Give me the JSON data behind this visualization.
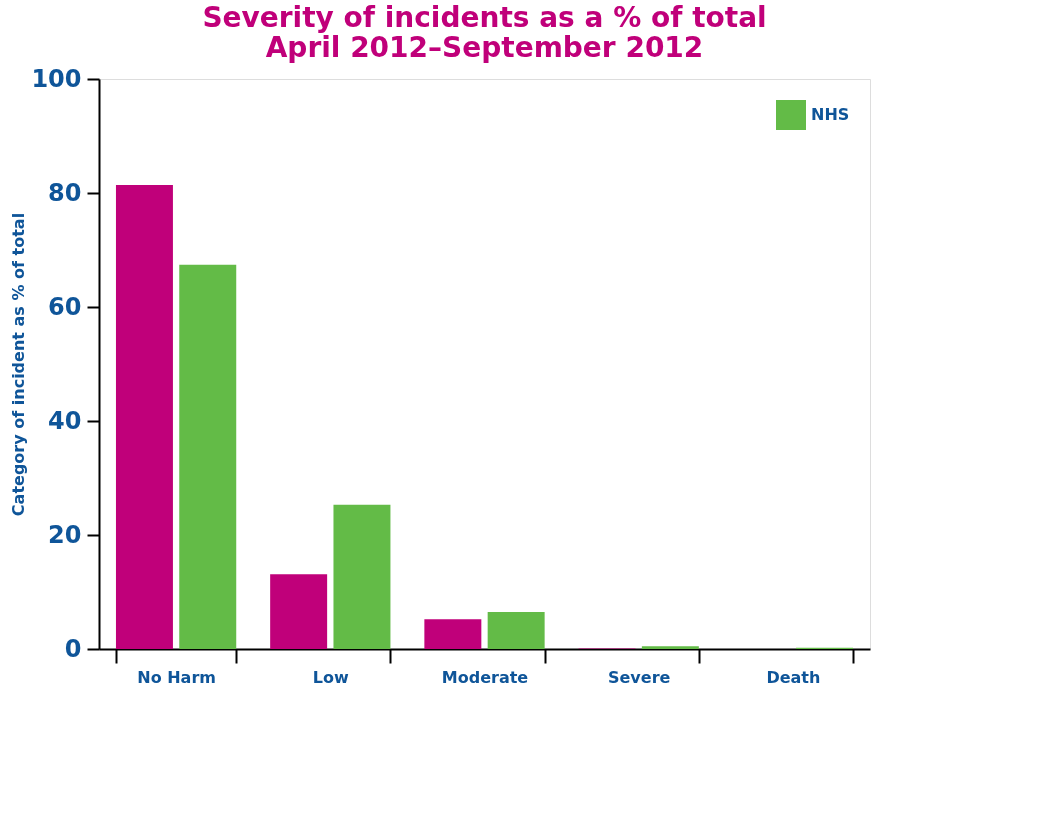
{
  "chart_data": {
    "type": "bar",
    "title": "Severity of incidents as a % of total\nApril 2012–September 2012",
    "ylabel": "Category of incident as % of total",
    "categories": [
      "No Harm",
      "Low",
      "Moderate",
      "Severe",
      "Death"
    ],
    "series": [
      {
        "color": "#c0007a",
        "values": [
          81.4,
          13.1,
          5.2,
          0.1,
          0
        ]
      },
      {
        "name": "NHS",
        "color": "#63bb47",
        "values": [
          67.4,
          25.3,
          6.5,
          0.5,
          0.2
        ]
      }
    ],
    "ylim": [
      0,
      100
    ],
    "yticks": [
      0,
      20,
      40,
      60,
      80,
      100
    ],
    "grid": false,
    "legend": "top right"
  }
}
